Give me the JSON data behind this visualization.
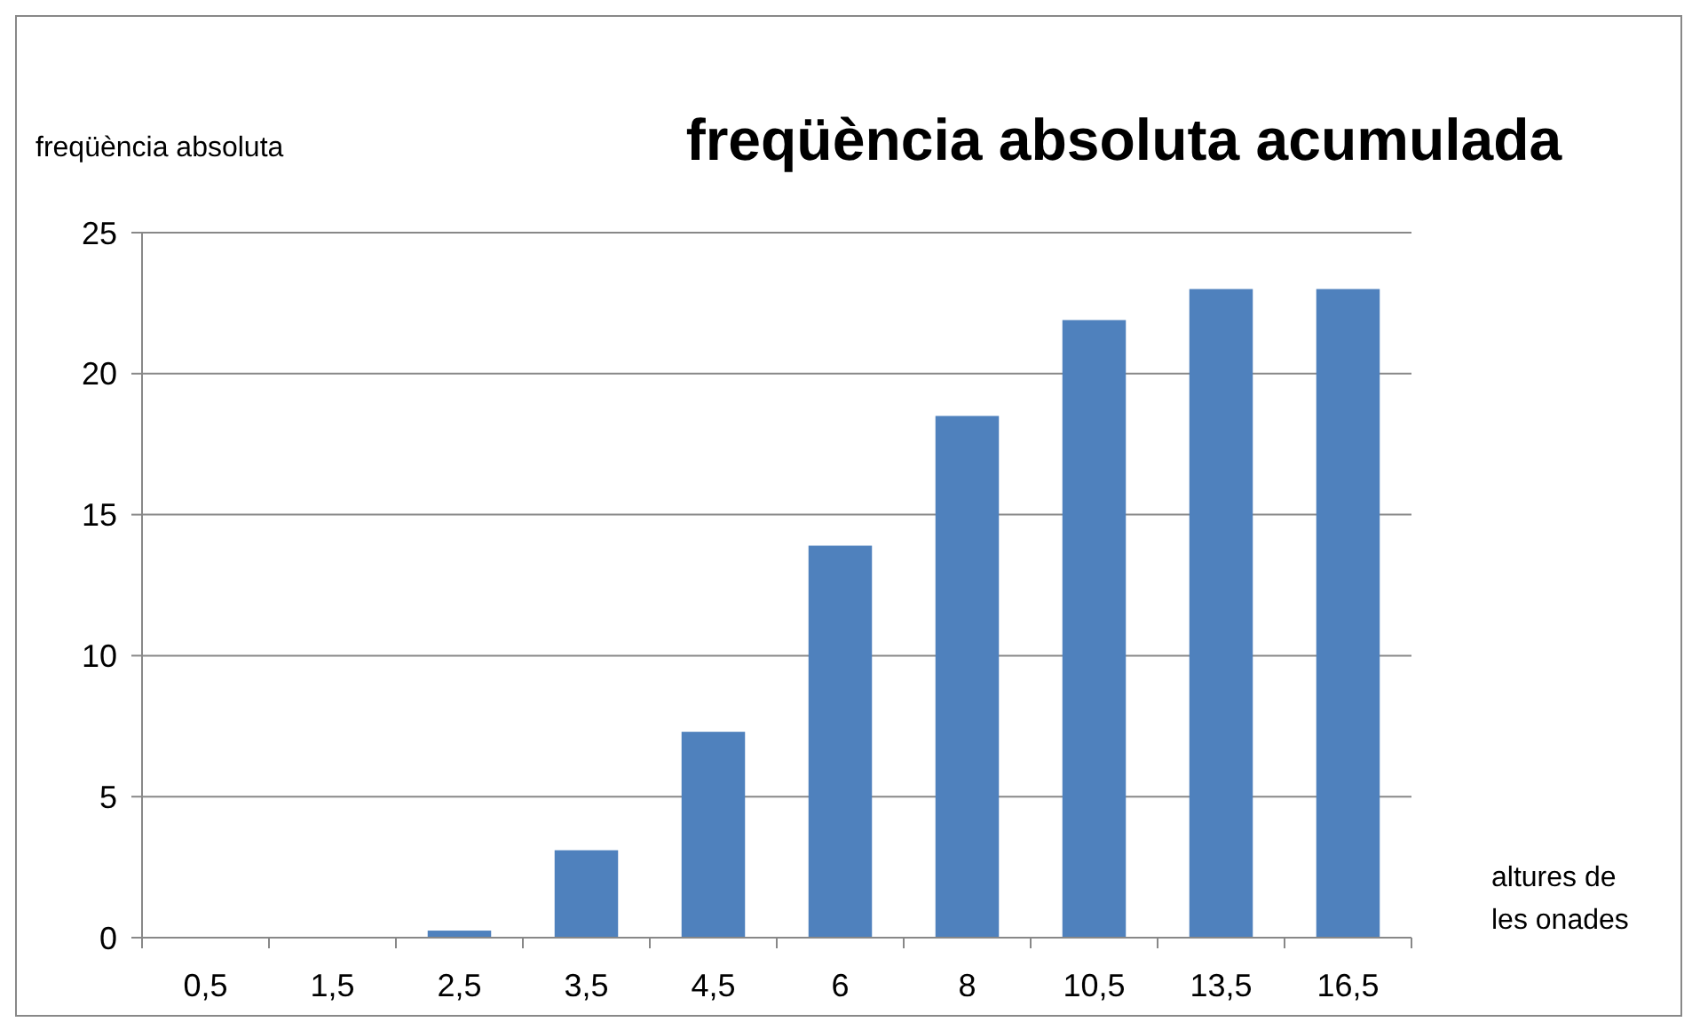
{
  "chart_data": {
    "type": "bar",
    "title": "freqüència absoluta acumulada",
    "ylabel": "freqüència absoluta",
    "xlabel": "altures de les onades",
    "categories": [
      "0,5",
      "1,5",
      "2,5",
      "3,5",
      "4,5",
      "6",
      "8",
      "10,5",
      "13,5",
      "16,5"
    ],
    "values": [
      0,
      0,
      0.25,
      3.1,
      7.3,
      13.9,
      18.5,
      21.9,
      23,
      23
    ],
    "color": "#4f81bd",
    "ylim": [
      0,
      25
    ],
    "yticks": [
      0,
      5,
      10,
      15,
      20,
      25
    ],
    "grid": "y"
  }
}
